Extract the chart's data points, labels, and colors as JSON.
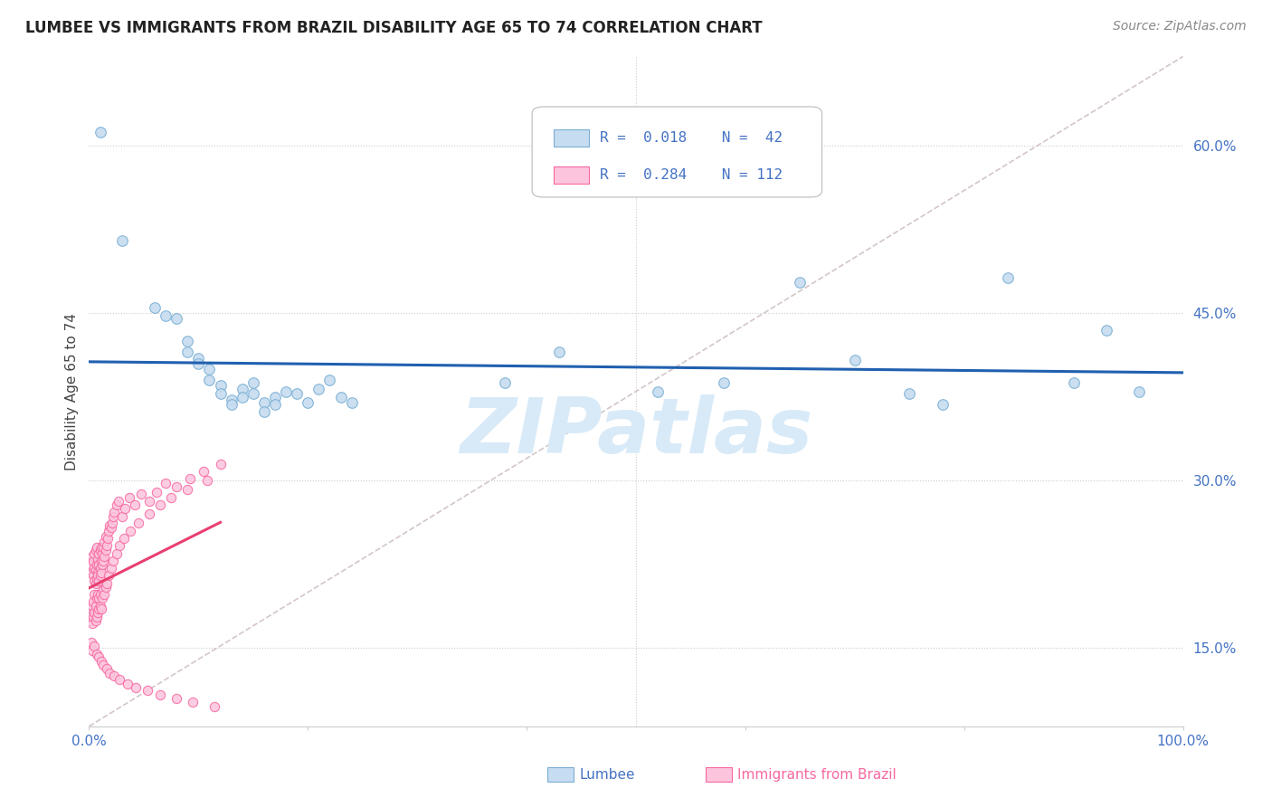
{
  "title": "LUMBEE VS IMMIGRANTS FROM BRAZIL DISABILITY AGE 65 TO 74 CORRELATION CHART",
  "source": "Source: ZipAtlas.com",
  "ylabel": "Disability Age 65 to 74",
  "xlim": [
    0,
    1.0
  ],
  "ylim": [
    0.08,
    0.68
  ],
  "xticks": [
    0.0,
    0.2,
    0.4,
    0.6,
    0.8,
    1.0
  ],
  "yticks": [
    0.15,
    0.3,
    0.45,
    0.6
  ],
  "legend_r1": "R = 0.018",
  "legend_n1": "N = 42",
  "legend_r2": "R = 0.284",
  "legend_n2": "N = 112",
  "blue_dot_face": "#c6dcf0",
  "blue_dot_edge": "#7aafd4",
  "pink_dot_face": "#fcc5dd",
  "pink_dot_edge": "#f768a1",
  "line_blue": "#2060b0",
  "line_pink": "#e84070",
  "line_diag_color": "#c8b8b8",
  "axis_tick_color": "#4472c4",
  "title_color": "#222222",
  "source_color": "#888888",
  "watermark_color": "#d8eaf8",
  "grid_color": "#cccccc",
  "legend_text_color": "#4472c4",
  "lumbee_label_color": "#4472c4",
  "brazil_label_color": "#f768a1",
  "lumbee_x": [
    0.01,
    0.03,
    0.06,
    0.07,
    0.08,
    0.09,
    0.09,
    0.1,
    0.1,
    0.11,
    0.11,
    0.12,
    0.12,
    0.13,
    0.13,
    0.14,
    0.14,
    0.15,
    0.15,
    0.16,
    0.16,
    0.17,
    0.17,
    0.18,
    0.19,
    0.2,
    0.21,
    0.22,
    0.23,
    0.24,
    0.38,
    0.43,
    0.52,
    0.58,
    0.65,
    0.7,
    0.75,
    0.78,
    0.84,
    0.9,
    0.93,
    0.96
  ],
  "lumbee_y": [
    0.612,
    0.515,
    0.455,
    0.448,
    0.445,
    0.425,
    0.415,
    0.41,
    0.405,
    0.4,
    0.39,
    0.385,
    0.378,
    0.372,
    0.368,
    0.382,
    0.375,
    0.388,
    0.378,
    0.37,
    0.362,
    0.375,
    0.368,
    0.38,
    0.378,
    0.37,
    0.382,
    0.39,
    0.375,
    0.37,
    0.388,
    0.415,
    0.38,
    0.388,
    0.478,
    0.408,
    0.378,
    0.368,
    0.482,
    0.388,
    0.435,
    0.38
  ],
  "brazil_x": [
    0.002,
    0.003,
    0.003,
    0.004,
    0.004,
    0.005,
    0.005,
    0.005,
    0.006,
    0.006,
    0.006,
    0.007,
    0.007,
    0.007,
    0.008,
    0.008,
    0.008,
    0.009,
    0.009,
    0.009,
    0.01,
    0.01,
    0.01,
    0.011,
    0.011,
    0.011,
    0.012,
    0.012,
    0.013,
    0.013,
    0.014,
    0.014,
    0.015,
    0.015,
    0.016,
    0.017,
    0.018,
    0.019,
    0.02,
    0.021,
    0.022,
    0.023,
    0.025,
    0.027,
    0.03,
    0.033,
    0.037,
    0.042,
    0.048,
    0.055,
    0.062,
    0.07,
    0.08,
    0.092,
    0.105,
    0.12,
    0.001,
    0.002,
    0.002,
    0.003,
    0.003,
    0.004,
    0.004,
    0.005,
    0.005,
    0.006,
    0.006,
    0.007,
    0.007,
    0.008,
    0.008,
    0.009,
    0.009,
    0.01,
    0.01,
    0.011,
    0.012,
    0.013,
    0.014,
    0.015,
    0.016,
    0.018,
    0.02,
    0.022,
    0.025,
    0.028,
    0.032,
    0.038,
    0.045,
    0.055,
    0.065,
    0.075,
    0.09,
    0.108,
    0.002,
    0.003,
    0.005,
    0.007,
    0.009,
    0.011,
    0.013,
    0.016,
    0.019,
    0.023,
    0.028,
    0.035,
    0.043,
    0.053,
    0.065,
    0.08,
    0.095,
    0.115
  ],
  "brazil_y": [
    0.225,
    0.218,
    0.232,
    0.215,
    0.228,
    0.21,
    0.222,
    0.235,
    0.208,
    0.22,
    0.238,
    0.212,
    0.225,
    0.24,
    0.218,
    0.23,
    0.215,
    0.225,
    0.235,
    0.21,
    0.222,
    0.238,
    0.215,
    0.228,
    0.24,
    0.218,
    0.225,
    0.235,
    0.228,
    0.24,
    0.232,
    0.245,
    0.238,
    0.25,
    0.242,
    0.248,
    0.255,
    0.26,
    0.258,
    0.262,
    0.268,
    0.272,
    0.278,
    0.282,
    0.268,
    0.275,
    0.285,
    0.278,
    0.288,
    0.282,
    0.29,
    0.298,
    0.295,
    0.302,
    0.308,
    0.315,
    0.175,
    0.18,
    0.185,
    0.172,
    0.188,
    0.178,
    0.192,
    0.182,
    0.198,
    0.175,
    0.188,
    0.178,
    0.195,
    0.182,
    0.198,
    0.185,
    0.195,
    0.188,
    0.198,
    0.185,
    0.195,
    0.202,
    0.198,
    0.205,
    0.208,
    0.215,
    0.222,
    0.228,
    0.235,
    0.242,
    0.248,
    0.255,
    0.262,
    0.27,
    0.278,
    0.285,
    0.292,
    0.3,
    0.155,
    0.148,
    0.152,
    0.145,
    0.142,
    0.138,
    0.135,
    0.132,
    0.128,
    0.125,
    0.122,
    0.118,
    0.115,
    0.112,
    0.108,
    0.105,
    0.102,
    0.098
  ]
}
